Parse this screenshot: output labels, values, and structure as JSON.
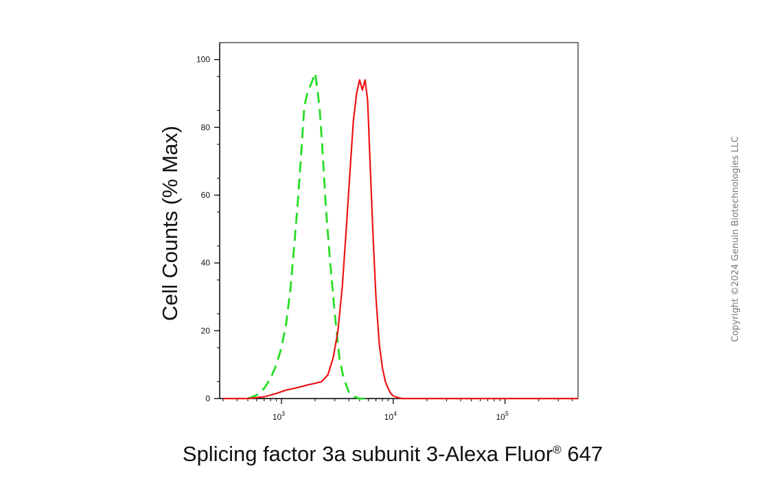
{
  "chart_data": {
    "type": "line",
    "title": "",
    "ylabel": "Cell Counts (% Max)",
    "xlabel": "Splicing factor 3a subunit 3-Alexa Fluor",
    "xlabel_superscript": "®",
    "xlabel_suffix": " 647",
    "x_scale": "log",
    "xlim": [
      280,
      450000
    ],
    "ylim": [
      0,
      105
    ],
    "y_ticks": [
      0,
      20,
      40,
      60,
      80,
      100
    ],
    "y_tick_labels": [
      "0",
      "20",
      "40",
      "60",
      "80",
      "100"
    ],
    "x_major_ticks": [
      1000,
      10000,
      100000
    ],
    "x_tick_label_base": "10",
    "x_tick_label_exponents": [
      "3",
      "4",
      "5"
    ],
    "grid": false,
    "series": [
      {
        "color": "#22dd22",
        "line_style": "dashed",
        "x": [
          500,
          600,
          700,
          800,
          900,
          1000,
          1100,
          1200,
          1300,
          1400,
          1500,
          1600,
          1700,
          1800,
          1900,
          2000,
          2100,
          2200,
          2300,
          2400,
          2500,
          2700,
          3000,
          3300,
          3600,
          4000,
          4500,
          5000,
          6000
        ],
        "y": [
          0,
          1,
          3,
          6,
          10,
          15,
          22,
          32,
          45,
          58,
          72,
          86,
          90,
          92,
          94,
          96,
          91,
          85,
          76,
          66,
          56,
          42,
          25,
          12,
          6,
          2,
          0.5,
          0,
          0
        ]
      },
      {
        "color": "#ee1111",
        "line_style": "solid",
        "x": [
          300,
          500,
          700,
          900,
          1100,
          1300,
          1500,
          1700,
          2000,
          2300,
          2600,
          2900,
          3200,
          3500,
          3800,
          4100,
          4400,
          4700,
          5000,
          5300,
          5600,
          5900,
          6200,
          6600,
          7000,
          7500,
          8000,
          8500,
          9000,
          9500,
          10000,
          11000,
          12000,
          15000,
          30000,
          100000,
          450000
        ],
        "y": [
          0,
          0,
          0.5,
          1.5,
          2.5,
          3,
          3.5,
          4,
          4.5,
          5,
          7,
          12,
          20,
          33,
          50,
          67,
          82,
          90,
          94,
          91,
          94,
          88,
          70,
          48,
          30,
          16,
          9,
          5,
          3,
          1.5,
          0.8,
          0.3,
          0,
          0,
          0,
          0,
          0
        ]
      }
    ]
  },
  "copyright": "Copyright ©2024 Genuin Biotechnologies LLC"
}
